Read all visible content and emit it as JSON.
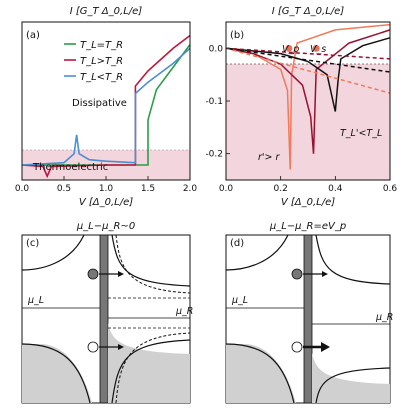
{
  "colors": {
    "shade": "#f2d5dd",
    "green": "#2a9d4a",
    "red": "#c0143c",
    "blue": "#4a8fd0",
    "darkred": "#9a1030",
    "black": "#111111",
    "salmon": "#f07a5a",
    "orange_dot": "#e8705a",
    "grey_fill": "#d0d0d0"
  },
  "panels": {
    "a": {
      "label": "(a)",
      "top_label": "I [G_T Δ_0,L/e]",
      "legend": [
        "T_L=T_R",
        "T_L>T_R",
        "T_L<T_R"
      ],
      "region_top": "Dissipative",
      "region_bottom": "Thermoelectric",
      "xlabel": "V [Δ_0,L/e]"
    },
    "b": {
      "label": "(b)",
      "top_label": "I [G_T Δ_0,L/e]",
      "annot_vp": "V_p",
      "annot_vs": "V_s",
      "annot_t": "T_L'<T_L",
      "annot_r": "r'> r",
      "xlabel": "V [Δ_0,L/e]"
    },
    "c": {
      "label": "(c)",
      "title": "μ_L−μ_R~0",
      "mu_l": "μ_L",
      "mu_r": "μ_R"
    },
    "d": {
      "label": "(d)",
      "title": "μ_L−μ_R=eV_p",
      "mu_l": "μ_L",
      "mu_r": "μ_R"
    }
  },
  "chart_data": [
    {
      "type": "line",
      "panel": "a",
      "title": "",
      "xlabel": "V [Δ0,L/e]",
      "ylabel": "I [GT Δ0,L/e]",
      "xlim": [
        0,
        2
      ],
      "ylim": [
        -0.2,
        1.9
      ],
      "xticks": [
        "0.0",
        "0.5",
        "1.0",
        "1.5",
        "2.0"
      ],
      "series": [
        {
          "name": "TL=TR",
          "x": [
            0,
            0.3,
            1.0,
            1.5,
            1.5,
            1.6,
            1.8,
            2.0
          ],
          "y": [
            0,
            0,
            0,
            0,
            0.6,
            1.0,
            1.3,
            1.6
          ]
        },
        {
          "name": "TL>TR",
          "x": [
            0,
            0.25,
            0.3,
            0.35,
            1.0,
            1.35,
            1.35,
            1.5,
            1.8,
            2.0
          ],
          "y": [
            0,
            -0.02,
            -0.15,
            -0.02,
            0,
            0,
            1.05,
            1.25,
            1.55,
            1.72
          ]
        },
        {
          "name": "TL<TR",
          "x": [
            0,
            0.5,
            0.62,
            0.65,
            0.68,
            0.8,
            1.0,
            1.35,
            1.35,
            1.5,
            1.8,
            2.0
          ],
          "y": [
            0,
            0.03,
            0.15,
            0.4,
            0.15,
            0.07,
            0.05,
            0.03,
            0.95,
            1.1,
            1.35,
            1.55
          ]
        }
      ]
    },
    {
      "type": "line",
      "panel": "b",
      "title": "",
      "xlabel": "V [Δ0,L/e]",
      "ylabel": "I [GT Δ0,L/e]",
      "xlim": [
        0,
        0.6
      ],
      "ylim": [
        -0.25,
        0.05
      ],
      "xticks": [
        "0.0",
        "0.2",
        "0.4",
        "0.6"
      ],
      "yticks": [
        "0.0",
        "-0.1",
        "-0.2"
      ],
      "series": [
        {
          "name": "",
          "x": [
            0,
            0.1,
            0.2,
            0.225,
            0.235,
            0.24,
            0.26,
            0.4,
            0.6
          ],
          "y": [
            0,
            -0.01,
            -0.04,
            -0.08,
            -0.23,
            -0.05,
            0.01,
            0.035,
            0.045
          ]
        },
        {
          "name": "",
          "x": [
            0,
            0.1,
            0.2,
            0.28,
            0.31,
            0.32,
            0.33,
            0.45,
            0.6
          ],
          "y": [
            0,
            -0.01,
            -0.03,
            -0.07,
            -0.13,
            -0.2,
            -0.04,
            0.01,
            0.035
          ]
        },
        {
          "name": "",
          "x": [
            0,
            0.2,
            0.3,
            0.37,
            0.4,
            0.41,
            0.42,
            0.5,
            0.6
          ],
          "y": [
            0,
            -0.01,
            -0.025,
            -0.05,
            -0.12,
            -0.06,
            -0.02,
            0.005,
            0.02
          ]
        },
        {
          "name": "",
          "x": [
            0,
            0.6
          ],
          "y": [
            0,
            -0.045
          ]
        },
        {
          "name": "",
          "x": [
            0,
            0.6
          ],
          "y": [
            0,
            -0.02
          ]
        },
        {
          "name": "",
          "x": [
            0,
            0.6
          ],
          "y": [
            0,
            -0.085
          ]
        }
      ],
      "markers": [
        {
          "label": "Vp",
          "x": 0.23,
          "y": 0
        },
        {
          "label": "Vs",
          "x": 0.33,
          "y": 0
        }
      ]
    }
  ]
}
